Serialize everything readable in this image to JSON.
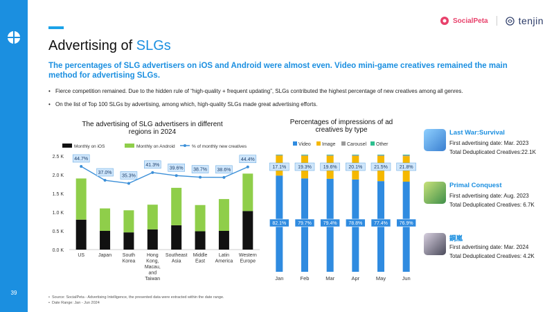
{
  "page": {
    "title_prefix": "Advertising of ",
    "title_highlight": "SLGs",
    "subtitle": "The percentages of SLG advertisers on iOS and Android were almost even. Video mini-game creatives remained the main method for advertising SLGs.",
    "bullets": [
      "Fierce competition remained. Due to the hidden rule of “high-quality + frequent updating”, SLGs contributed the highest percentage of new creatives among all genres.",
      "On the list of Top 100 SLGs by advertising, among which, high-quality SLGs made great advertising efforts."
    ],
    "footnotes": [
      "Source: SocialPeta - Advertising Intelligence, the presented data were extracted within the date range.",
      "Date Range: Jan - Jun 2024"
    ],
    "page_number": "39",
    "brand_socialpeta": "SocialPeta",
    "brand_tenjin": "tenjin"
  },
  "colors": {
    "accent": "#1b8fe0",
    "ios": "#111111",
    "android": "#8fce4a",
    "line": "#3b8fd8",
    "video": "#2f8be0",
    "image": "#f5b800",
    "carousel": "#9a9a9a",
    "other": "#2ebf8f"
  },
  "chart_data": [
    {
      "type": "bar",
      "title": "The advertising of SLG advertisers in different regions in 2024",
      "categories": [
        "US",
        "Japan",
        "South Korea",
        "Hong Kong, Macau, and Taiwan",
        "Southeast Asia",
        "Middle East",
        "Latin America",
        "Western Europe"
      ],
      "category_lines": [
        [
          "US"
        ],
        [
          "Japan"
        ],
        [
          "South",
          "Korea"
        ],
        [
          "Hong",
          "Kong,",
          "Macau,",
          "and",
          "Taiwan"
        ],
        [
          "Southeast",
          "Asia"
        ],
        [
          "Middle",
          "East"
        ],
        [
          "Latin",
          "America"
        ],
        [
          "Western",
          "Europe"
        ]
      ],
      "series": [
        {
          "name": "Monthly on iOS",
          "values": [
            800,
            500,
            460,
            540,
            650,
            490,
            500,
            1030
          ]
        },
        {
          "name": "Monthly on Android",
          "values": [
            1100,
            600,
            590,
            660,
            1000,
            700,
            850,
            1000
          ]
        },
        {
          "name": "% of monthly new creatives",
          "values": [
            44.7,
            37.0,
            35.3,
            41.3,
            39.6,
            38.7,
            38.6,
            44.4
          ],
          "labels": [
            "44.7%",
            "37.0%",
            "35.3%",
            "41.3%",
            "39.6%",
            "38.7%",
            "38.6%",
            "44.4%"
          ]
        }
      ],
      "yticks": [
        "0.0 K",
        "0.5 K",
        "1.0 K",
        "1.5 K",
        "2.0 K",
        "2.5 K"
      ],
      "ylim": [
        0,
        2500
      ],
      "stacked": true
    },
    {
      "type": "bar",
      "title": "Percentages of impressions of ad creatives by type",
      "categories": [
        "Jan",
        "Feb",
        "Mar",
        "Apr",
        "May",
        "Jun"
      ],
      "series": [
        {
          "name": "Video",
          "values": [
            82.1,
            79.7,
            79.4,
            78.8,
            77.4,
            76.9
          ],
          "labels": [
            "82.1%",
            "79.7%",
            "79.4%",
            "78.8%",
            "77.4%",
            "76.9%"
          ]
        },
        {
          "name": "Image",
          "values": [
            17.1,
            19.3,
            19.6,
            20.1,
            21.5,
            21.8
          ],
          "labels": [
            "17.1%",
            "19.3%",
            "19.6%",
            "20.1%",
            "21.5%",
            "21.8%"
          ]
        },
        {
          "name": "Carousel",
          "values": [
            0.5,
            0.6,
            0.6,
            0.7,
            0.7,
            0.8
          ]
        },
        {
          "name": "Other",
          "values": [
            0.3,
            0.4,
            0.4,
            0.4,
            0.4,
            0.5
          ]
        }
      ],
      "ylim": [
        0,
        100
      ],
      "stacked": true
    }
  ],
  "games": [
    {
      "name": "Last War:Survival",
      "first_date": "First advertising date: Mar. 2023",
      "creatives": "Total Deduplicated Creatives:22.1K",
      "thumb": "#5aa8e8"
    },
    {
      "name": "Primal Conquest",
      "first_date": "First advertising date: Aug. 2023",
      "creatives": "Total Deduplicated Creatives: 6.7K",
      "thumb": "#6fae6a"
    },
    {
      "name": "鋼嵐",
      "first_date": "First advertising date: Mar. 2024",
      "creatives": "Total Deduplicated Creatives: 4.2K",
      "thumb": "#8a7f9a"
    }
  ]
}
